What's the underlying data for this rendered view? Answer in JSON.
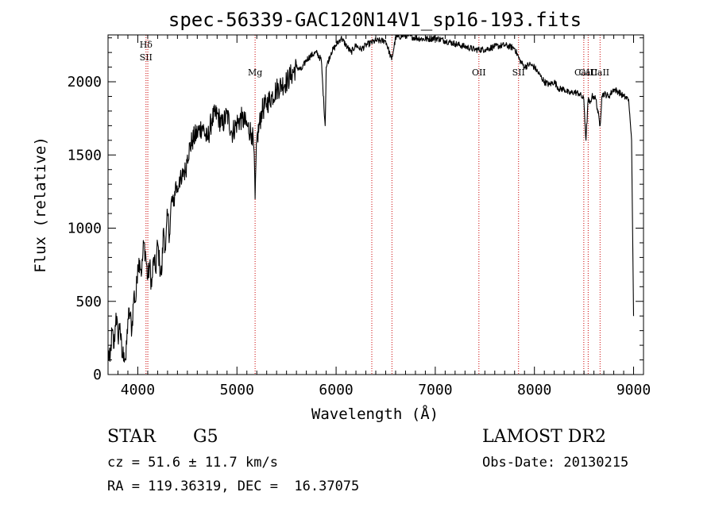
{
  "chart_data": {
    "type": "line",
    "title": "spec-56339-GAC120N14V1_sp16-193.fits",
    "xlabel": "Wavelength (Å)",
    "ylabel": "Flux (relative)",
    "xlim": [
      3700,
      9100
    ],
    "ylim": [
      0,
      2320
    ],
    "x_ticks": [
      4000,
      5000,
      6000,
      7000,
      8000,
      9000
    ],
    "y_ticks": [
      0,
      500,
      1000,
      1500,
      2000
    ],
    "line_color": "#000000",
    "marker_color": "#cc0000",
    "series": [
      {
        "x": [
          3700,
          3720,
          3740,
          3760,
          3780,
          3800,
          3820,
          3840,
          3860,
          3880,
          3900,
          3920,
          3940,
          3960,
          3980,
          4000,
          4020,
          4040,
          4060,
          4080,
          4100,
          4120,
          4140,
          4160,
          4180,
          4200,
          4220,
          4240,
          4260,
          4280,
          4300,
          4320,
          4340,
          4360,
          4380,
          4400,
          4420,
          4440,
          4460,
          4480,
          4500,
          4550,
          4600,
          4650,
          4700,
          4750,
          4800,
          4850,
          4900,
          4950,
          5000,
          5050,
          5100,
          5150,
          5170,
          5183,
          5200,
          5250,
          5300,
          5350,
          5400,
          5450,
          5500,
          5550,
          5600,
          5650,
          5700,
          5750,
          5800,
          5850,
          5890,
          5900,
          5950,
          6000,
          6050,
          6100,
          6150,
          6200,
          6250,
          6300,
          6400,
          6500,
          6560,
          6600,
          6700,
          6800,
          6900,
          7000,
          7100,
          7200,
          7300,
          7400,
          7500,
          7600,
          7700,
          7800,
          7850,
          7900,
          7950,
          8000,
          8050,
          8100,
          8150,
          8200,
          8250,
          8300,
          8350,
          8400,
          8450,
          8498,
          8520,
          8542,
          8560,
          8580,
          8600,
          8620,
          8662,
          8680,
          8700,
          8750,
          8800,
          8850,
          8900,
          8950,
          8980,
          9000
        ],
        "y": [
          150,
          90,
          300,
          180,
          420,
          250,
          350,
          120,
          150,
          100,
          380,
          420,
          300,
          550,
          500,
          750,
          780,
          700,
          900,
          820,
          650,
          750,
          600,
          800,
          700,
          900,
          750,
          680,
          1000,
          850,
          1100,
          950,
          1200,
          1150,
          1300,
          1250,
          1350,
          1300,
          1400,
          1380,
          1500,
          1600,
          1650,
          1700,
          1600,
          1750,
          1780,
          1700,
          1780,
          1650,
          1720,
          1750,
          1700,
          1650,
          1550,
          1200,
          1600,
          1800,
          1850,
          1900,
          1950,
          1980,
          2000,
          2050,
          2100,
          2080,
          2150,
          2180,
          2200,
          2150,
          1700,
          2100,
          2200,
          2250,
          2300,
          2250,
          2200,
          2250,
          2220,
          2250,
          2280,
          2280,
          2150,
          2300,
          2320,
          2300,
          2290,
          2300,
          2280,
          2260,
          2240,
          2220,
          2220,
          2240,
          2250,
          2230,
          2150,
          2100,
          2120,
          2100,
          2050,
          2000,
          1980,
          2000,
          1950,
          1950,
          1920,
          1930,
          1920,
          1880,
          1600,
          1880,
          1850,
          1900,
          1900,
          1880,
          1700,
          1900,
          1920,
          1900,
          1950,
          1930,
          1900,
          1880,
          1600,
          400
        ]
      }
    ],
    "lines": [
      {
        "x": 4083,
        "labels": [
          "Hδ",
          "SII"
        ]
      },
      {
        "x": 4101,
        "labels": []
      },
      {
        "x": 5183,
        "labels": [
          "Mg"
        ]
      },
      {
        "x": 6360,
        "labels": []
      },
      {
        "x": 6563,
        "labels": []
      },
      {
        "x": 7440,
        "labels": [
          "OII"
        ]
      },
      {
        "x": 7840,
        "labels": [
          "SII"
        ]
      },
      {
        "x": 8498,
        "labels": [
          "CaII"
        ]
      },
      {
        "x": 8542,
        "labels": [
          "CaII"
        ]
      },
      {
        "x": 8662,
        "labels": [
          "CaII"
        ]
      }
    ]
  },
  "info": {
    "object_class": "STAR",
    "subclass": "G5",
    "survey": "LAMOST DR2",
    "redshift": "cz = 51.6 ± 11.7 km/s",
    "obs_date": "Obs-Date: 20130215",
    "coords": "RA = 119.36319, DEC =  16.37075"
  }
}
